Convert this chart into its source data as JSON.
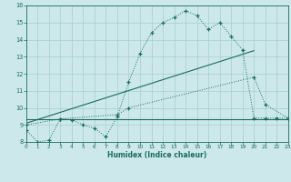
{
  "xlabel": "Humidex (Indice chaleur)",
  "bg_color": "#cce8ea",
  "grid_color": "#a8cdd0",
  "line_color": "#1a6b60",
  "xlim": [
    0,
    23
  ],
  "ylim": [
    8,
    16
  ],
  "xticks": [
    0,
    1,
    2,
    3,
    4,
    5,
    6,
    7,
    8,
    9,
    10,
    11,
    12,
    13,
    14,
    15,
    16,
    17,
    18,
    19,
    20,
    21,
    22,
    23
  ],
  "yticks": [
    8,
    9,
    10,
    11,
    12,
    13,
    14,
    15,
    16
  ],
  "line1_x": [
    0,
    1,
    2,
    3,
    4,
    5,
    6,
    7,
    8,
    9,
    10,
    11,
    12,
    13,
    14,
    15,
    16,
    17,
    18,
    19,
    20,
    21,
    22,
    23
  ],
  "line1_y": [
    8.7,
    8.0,
    8.1,
    9.35,
    9.3,
    9.0,
    8.8,
    8.3,
    9.5,
    11.5,
    13.2,
    14.4,
    15.0,
    15.3,
    15.7,
    15.4,
    14.6,
    15.0,
    14.2,
    13.4,
    9.4,
    9.4,
    9.4,
    9.4
  ],
  "line2_x": [
    0,
    23
  ],
  "line2_y": [
    9.35,
    9.35
  ],
  "line3_x": [
    0,
    3,
    8,
    9,
    20,
    21,
    23
  ],
  "line3_y": [
    9.0,
    9.35,
    9.6,
    10.0,
    11.8,
    10.2,
    9.4
  ],
  "line4_x": [
    0,
    20
  ],
  "line4_y": [
    9.1,
    13.35
  ]
}
